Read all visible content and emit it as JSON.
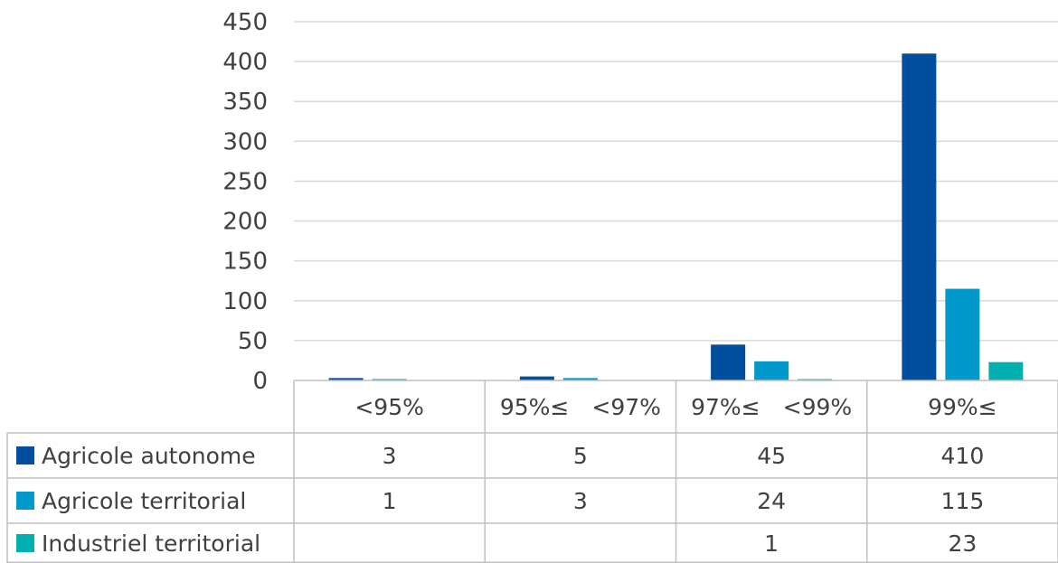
{
  "chart_data": {
    "type": "bar",
    "title": "",
    "xlabel": "",
    "ylabel": "",
    "ylim": [
      0,
      450
    ],
    "yticks": [
      0,
      50,
      100,
      150,
      200,
      250,
      300,
      350,
      400,
      450
    ],
    "yticks_text": [
      "0",
      "50",
      "100",
      "150",
      "200",
      "250",
      "300",
      "350",
      "400",
      "450"
    ],
    "grid": true,
    "legend": "data-table",
    "categories": [
      "<95%",
      "95%≤　<97%",
      "97%≤　<99%",
      "99%≤"
    ],
    "series": [
      {
        "name": "Agricole autonome",
        "color": "#004f9f",
        "values": [
          3,
          5,
          45,
          410
        ],
        "labels": [
          "3",
          "5",
          "45",
          "410"
        ]
      },
      {
        "name": "Agricole territorial",
        "color": "#0099cc",
        "values": [
          1,
          3,
          24,
          115
        ],
        "labels": [
          "1",
          "3",
          "24",
          "115"
        ]
      },
      {
        "name": "Industriel territorial",
        "color": "#00b0b0",
        "values": [
          null,
          null,
          1,
          23
        ],
        "labels": [
          "",
          "",
          "1",
          "23"
        ]
      }
    ]
  }
}
